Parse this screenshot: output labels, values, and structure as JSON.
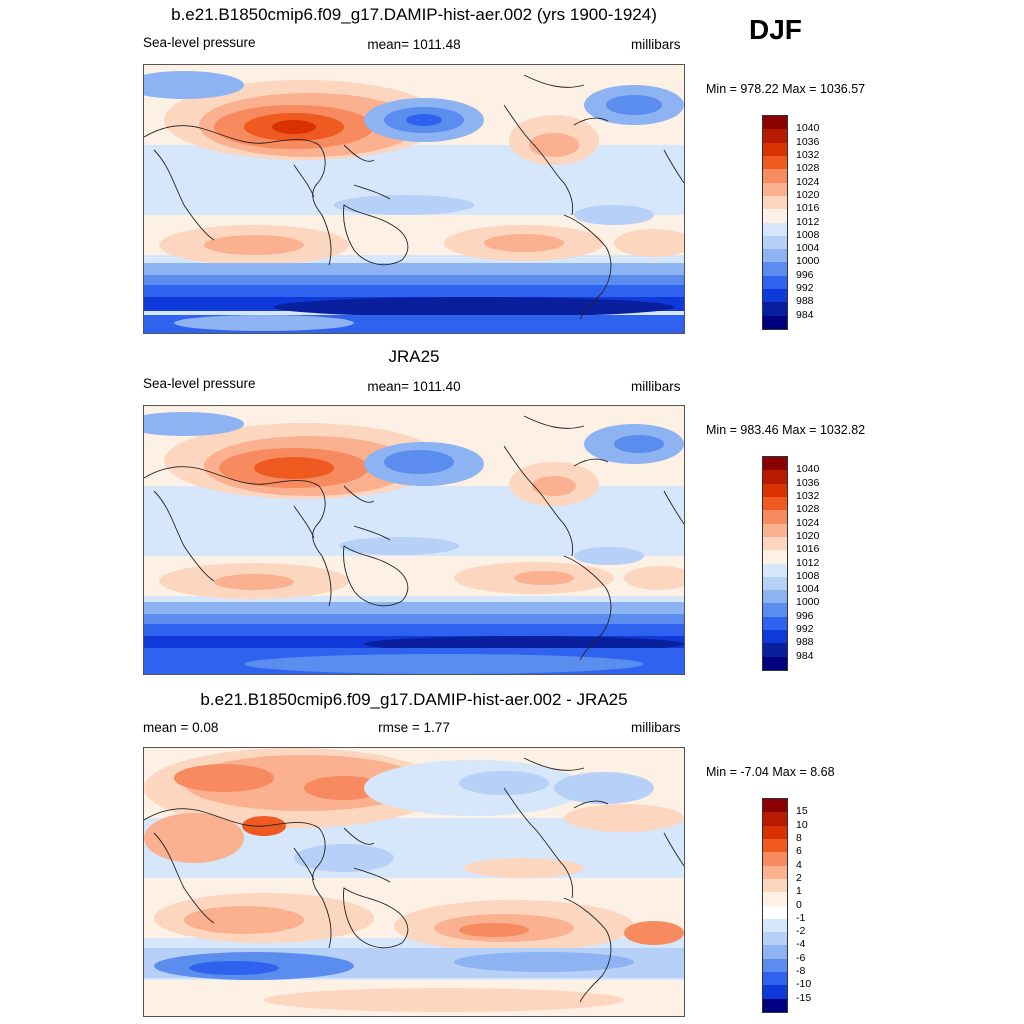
{
  "season": "DJF",
  "panels": [
    {
      "id": "model",
      "title": "b.e21.B1850cmip6.f09_g17.DAMIP-hist-aer.002 (yrs 1900-1924)",
      "left_label": "Sea-level pressure",
      "center_label": "mean= 1011.48",
      "right_label": "millibars",
      "minmax": "Min = 978.22 Max = 1036.57",
      "levels": [
        "1040",
        "1036",
        "1032",
        "1028",
        "1024",
        "1020",
        "1016",
        "1012",
        "1008",
        "1004",
        "1000",
        "996",
        "992",
        "988",
        "984"
      ],
      "colors": [
        "#8b0000",
        "#b81a00",
        "#d93200",
        "#ef5a20",
        "#f78a5e",
        "#fbb090",
        "#fdd6c0",
        "#fdf0e4",
        "#d6e6fb",
        "#b6d0f7",
        "#8db3f2",
        "#5b8def",
        "#2f62ee",
        "#0f39d8",
        "#0a1f9e",
        "#000080"
      ]
    },
    {
      "id": "obs",
      "title": "JRA25",
      "left_label": "Sea-level pressure",
      "center_label": "mean= 1011.40",
      "right_label": "millibars",
      "minmax": "Min = 983.46 Max = 1032.82",
      "levels": [
        "1040",
        "1036",
        "1032",
        "1028",
        "1024",
        "1020",
        "1016",
        "1012",
        "1008",
        "1004",
        "1000",
        "996",
        "992",
        "988",
        "984"
      ],
      "colors": [
        "#8b0000",
        "#b81a00",
        "#d93200",
        "#ef5a20",
        "#f78a5e",
        "#fbb090",
        "#fdd6c0",
        "#fdf0e4",
        "#d6e6fb",
        "#b6d0f7",
        "#8db3f2",
        "#5b8def",
        "#2f62ee",
        "#0f39d8",
        "#0a1f9e",
        "#000080"
      ]
    },
    {
      "id": "diff",
      "title": "b.e21.B1850cmip6.f09_g17.DAMIP-hist-aer.002 - JRA25",
      "left_label": "mean =   0.08",
      "center_label": "rmse =   1.77",
      "right_label": "millibars",
      "minmax": "Min =  -7.04 Max =   8.68",
      "levels": [
        "15",
        "10",
        "8",
        "6",
        "4",
        "2",
        "1",
        "0",
        "-1",
        "-2",
        "-4",
        "-6",
        "-8",
        "-10",
        "-15"
      ],
      "colors": [
        "#8b0000",
        "#b81a00",
        "#d93200",
        "#ef5a20",
        "#f78a5e",
        "#fbb090",
        "#fdd6c0",
        "#fdf0e4",
        "#ffffff",
        "#d6e6fb",
        "#b6d0f7",
        "#8db3f2",
        "#5b8def",
        "#2f62ee",
        "#0f39d8",
        "#000080"
      ]
    }
  ]
}
